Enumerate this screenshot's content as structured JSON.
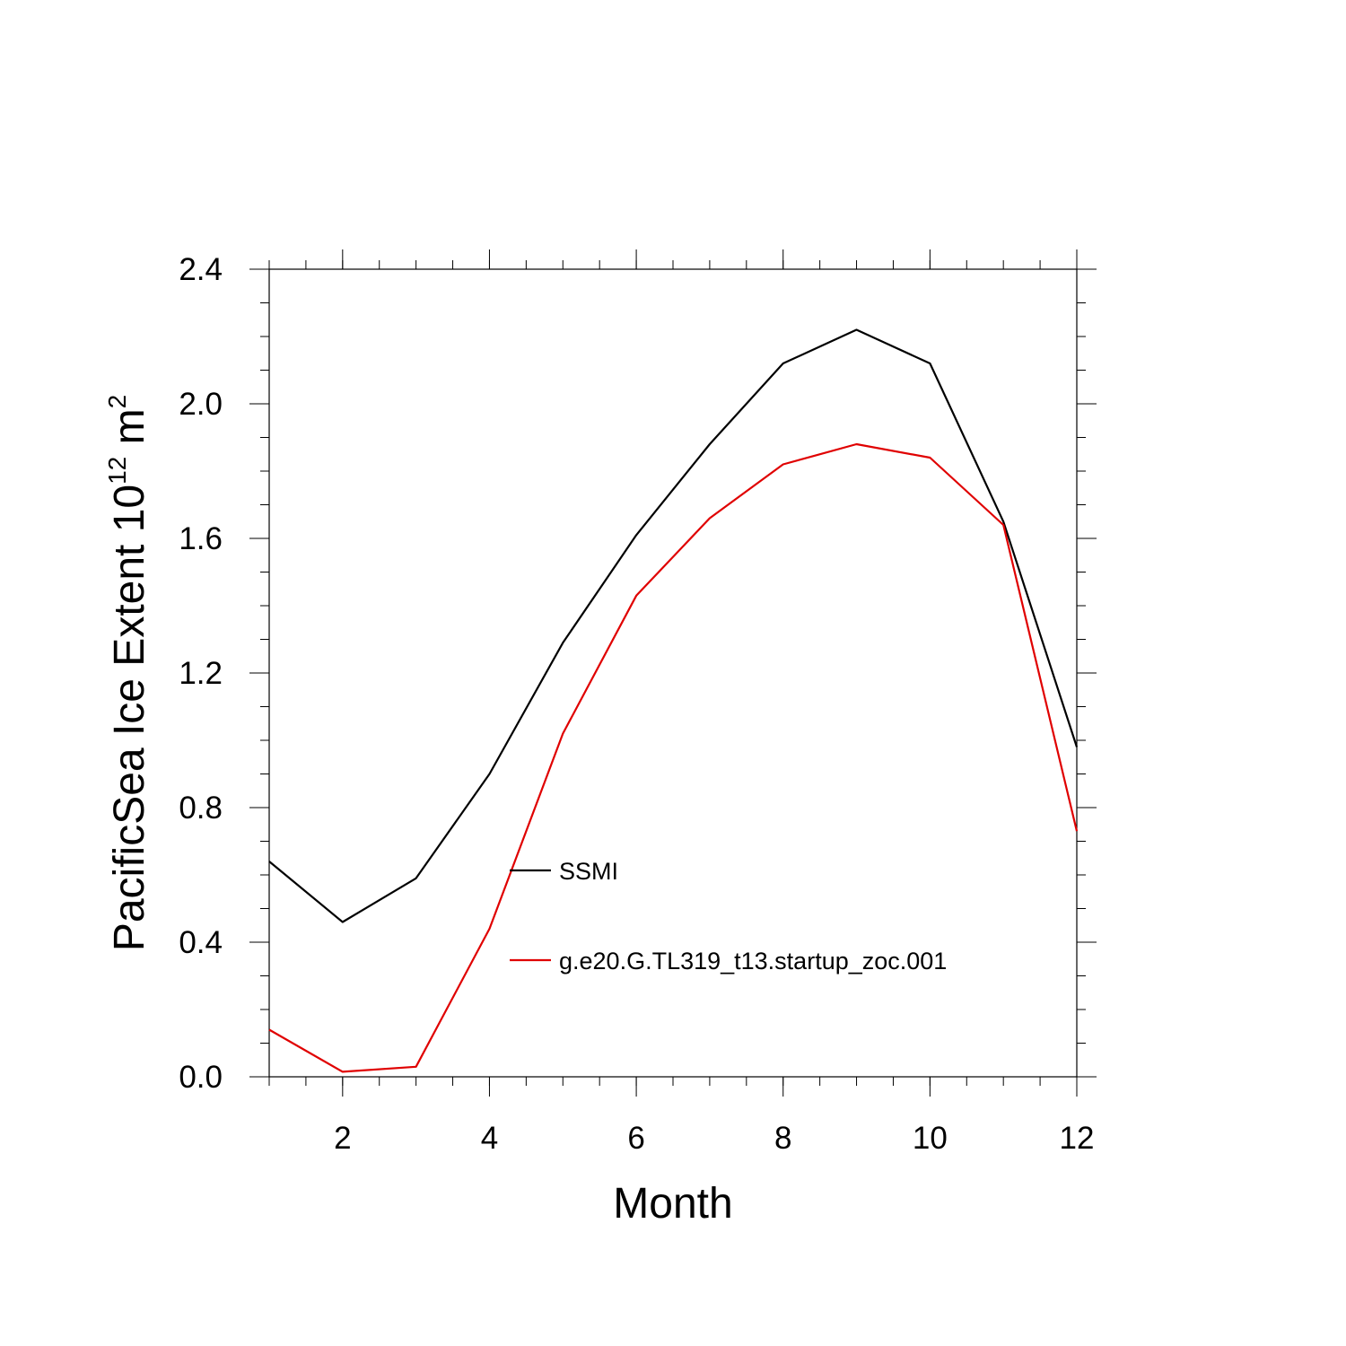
{
  "chart_data": {
    "type": "line",
    "xlabel": "Month",
    "ylabel": {
      "text": "PacificSea Ice Extent 10",
      "exponent": "12",
      "unit": " m",
      "unit_exponent": "2"
    },
    "xlim": [
      1,
      12
    ],
    "ylim": [
      0,
      2.4
    ],
    "x_ticks": [
      2,
      4,
      6,
      8,
      10,
      12
    ],
    "y_ticks": [
      0.0,
      0.4,
      0.8,
      1.2,
      1.6,
      2.0,
      2.4
    ],
    "y_tick_labels": [
      "0.0",
      "0.4",
      "0.8",
      "1.2",
      "1.6",
      "2.0",
      "2.4"
    ],
    "x_tick_labels": [
      "2",
      "4",
      "6",
      "8",
      "10",
      "12"
    ],
    "grid": false,
    "x": [
      1,
      2,
      3,
      4,
      5,
      6,
      7,
      8,
      9,
      10,
      11,
      12
    ],
    "series": [
      {
        "name": "SSMI",
        "color": "#000000",
        "values": [
          0.64,
          0.46,
          0.59,
          0.9,
          1.29,
          1.61,
          1.88,
          2.12,
          2.22,
          2.12,
          1.65,
          0.98
        ]
      },
      {
        "name": "g.e20.G.TL319_t13.startup_zoc.001",
        "color": "#e00000",
        "values": [
          0.14,
          0.015,
          0.03,
          0.44,
          1.02,
          1.43,
          1.66,
          1.82,
          1.88,
          1.84,
          1.64,
          0.73
        ]
      }
    ],
    "legend_position": "inside-center"
  }
}
